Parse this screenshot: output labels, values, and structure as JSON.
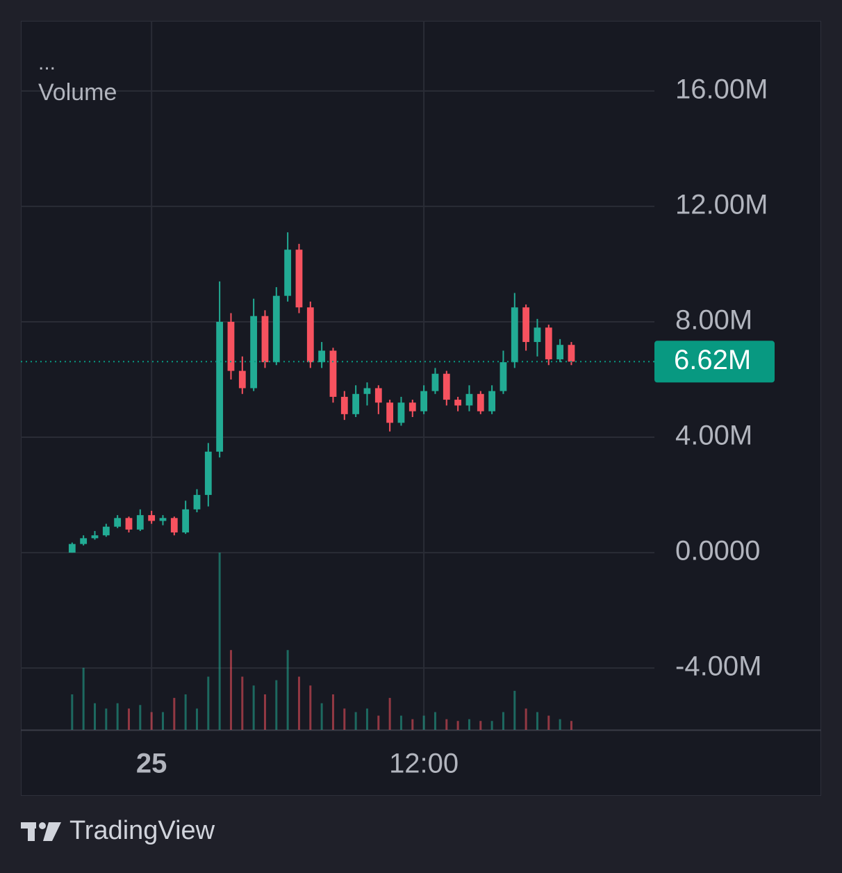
{
  "chart_data": {
    "type": "candlestick",
    "title": "Volume",
    "menu": "...",
    "brand": "TradingView",
    "up_color": "#22ab94",
    "down_color": "#f7525f",
    "grid": true,
    "x": [
      -3.5,
      -3,
      -2.5,
      -2,
      -1.5,
      -1,
      -0.5,
      0,
      0.5,
      1,
      1.5,
      2,
      2.5,
      3,
      3.5,
      4,
      4.5,
      5,
      5.5,
      6,
      6.5,
      7,
      7.5,
      8,
      8.5,
      9,
      9.5,
      10,
      10.5,
      11,
      11.5,
      12,
      12.5,
      13,
      13.5,
      14,
      14.5,
      15,
      15.5,
      16,
      16.5,
      17,
      17.5,
      18,
      18.5
    ],
    "open": [
      0,
      300000,
      500000,
      600000,
      900000,
      1200000,
      800000,
      1300000,
      1100000,
      1200000,
      700000,
      1500000,
      2000000,
      3500000,
      8000000,
      6300000,
      5700000,
      8200000,
      6600000,
      8900000,
      10500000,
      8500000,
      6600000,
      7000000,
      5400000,
      4800000,
      5500000,
      5700000,
      5200000,
      4500000,
      5200000,
      4900000,
      5600000,
      6200000,
      5300000,
      5100000,
      5500000,
      4900000,
      5600000,
      6600000,
      8500000,
      7300000,
      7800000,
      6700000,
      7200000
    ],
    "high": [
      350000,
      600000,
      750000,
      1000000,
      1300000,
      1250000,
      1500000,
      1450000,
      1300000,
      1250000,
      1800000,
      2200000,
      3800000,
      9400000,
      8300000,
      6800000,
      8800000,
      8400000,
      9200000,
      11100000,
      10700000,
      8700000,
      7300000,
      7100000,
      5600000,
      5800000,
      5900000,
      5800000,
      5300000,
      5400000,
      5300000,
      5800000,
      6400000,
      6300000,
      5400000,
      5800000,
      5600000,
      5800000,
      7000000,
      9000000,
      8600000,
      8100000,
      7900000,
      7400000,
      7300000
    ],
    "low": [
      0,
      250000,
      450000,
      550000,
      850000,
      700000,
      750000,
      1000000,
      950000,
      600000,
      650000,
      1400000,
      1600000,
      3300000,
      6000000,
      5500000,
      5600000,
      6400000,
      6500000,
      8700000,
      8300000,
      6400000,
      6400000,
      5200000,
      4600000,
      4700000,
      5100000,
      4800000,
      4200000,
      4400000,
      4700000,
      4800000,
      5500000,
      5100000,
      4900000,
      4900000,
      4800000,
      4800000,
      5500000,
      6400000,
      7000000,
      6800000,
      6500000,
      6600000,
      6500000
    ],
    "close": [
      300000,
      500000,
      600000,
      900000,
      1200000,
      800000,
      1300000,
      1100000,
      1200000,
      700000,
      1500000,
      2000000,
      3500000,
      8000000,
      6300000,
      5700000,
      8200000,
      6600000,
      8900000,
      10500000,
      8500000,
      6600000,
      7000000,
      5400000,
      4800000,
      5500000,
      5700000,
      5200000,
      4500000,
      5200000,
      4900000,
      5600000,
      6200000,
      5300000,
      5100000,
      5500000,
      4900000,
      5600000,
      6600000,
      8500000,
      7300000,
      7800000,
      6700000,
      7200000,
      6620000
    ],
    "volume": [
      20,
      35,
      15,
      12,
      15,
      12,
      14,
      10,
      10,
      18,
      20,
      12,
      30,
      100,
      45,
      30,
      25,
      20,
      28,
      45,
      30,
      25,
      15,
      20,
      12,
      10,
      12,
      8,
      18,
      8,
      6,
      8,
      10,
      6,
      5,
      6,
      5,
      5,
      10,
      22,
      12,
      10,
      8,
      6,
      5
    ],
    "volume_lim": [
      0,
      100
    ],
    "last_price": {
      "value": 6620000,
      "label": "6.62M"
    },
    "xlim": [
      -5.76,
      22.16
    ],
    "xticks": [
      {
        "value": 0,
        "label": "25"
      },
      {
        "value": 12,
        "label": "12:00"
      }
    ],
    "ylim": [
      -6140000,
      18430000
    ],
    "yticks": [
      {
        "value": -4000000,
        "label": "-4.00M"
      },
      {
        "value": 0,
        "label": "0.0000"
      },
      {
        "value": 4000000,
        "label": "4.00M"
      },
      {
        "value": 8000000,
        "label": "8.00M"
      },
      {
        "value": 12000000,
        "label": "12.00M"
      },
      {
        "value": 16000000,
        "label": "16.00M"
      }
    ]
  }
}
